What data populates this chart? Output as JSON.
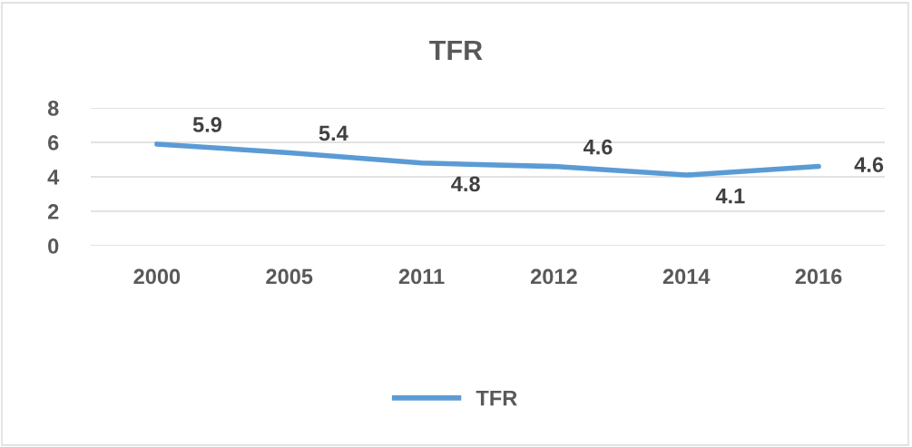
{
  "chart_data": {
    "type": "line",
    "title": "TFR",
    "categories": [
      "2000",
      "2005",
      "2011",
      "2012",
      "2014",
      "2016"
    ],
    "series": [
      {
        "name": "TFR",
        "color": "#5b9bd5",
        "values": [
          5.9,
          5.4,
          4.8,
          4.6,
          4.1,
          4.6
        ]
      }
    ],
    "ylim": [
      0,
      8
    ],
    "yticks": [
      0,
      2,
      4,
      6,
      8
    ],
    "grid": "y",
    "legend": "bottom",
    "data_labels": true,
    "marker": "none",
    "line_style": "solid"
  }
}
